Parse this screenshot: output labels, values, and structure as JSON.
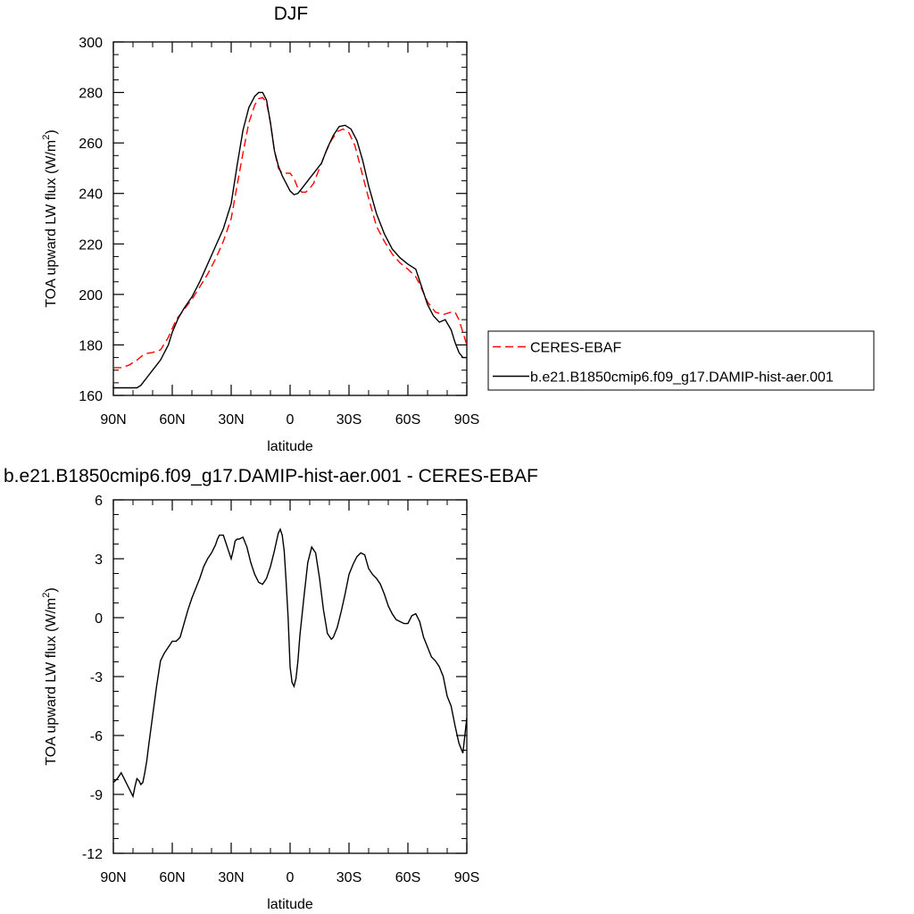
{
  "chart_data": [
    {
      "type": "line",
      "title": "DJF",
      "xlabel": "latitude",
      "ylabel": "TOA upward LW flux (W/m",
      "ylabel_sup": "2",
      "ylabel_close": ")",
      "xlim": [
        90,
        -90
      ],
      "ylim": [
        160,
        300
      ],
      "xticks": [
        90,
        60,
        30,
        0,
        -30,
        -60,
        -90
      ],
      "xtick_labels": [
        "90N",
        "60N",
        "30N",
        "0",
        "30S",
        "60S",
        "90S"
      ],
      "yticks": [
        160,
        180,
        200,
        220,
        240,
        260,
        280,
        300
      ],
      "ytick_labels": [
        "160",
        "180",
        "200",
        "220",
        "240",
        "260",
        "280",
        "300"
      ],
      "legend": "right",
      "series": [
        {
          "name": "CERES-EBAF",
          "color": "#ff0000",
          "dash": "dashed",
          "x": [
            90,
            86,
            82,
            78,
            74,
            70,
            66,
            62,
            58,
            54,
            50,
            46,
            42,
            38,
            34,
            30,
            27,
            24,
            21,
            18,
            16,
            14,
            12,
            10,
            8,
            6,
            4,
            2,
            0,
            -2,
            -4,
            -6,
            -8,
            -10,
            -12,
            -15,
            -18,
            -21,
            -24,
            -27,
            -30,
            -33,
            -36,
            -40,
            -44,
            -48,
            -52,
            -56,
            -60,
            -64,
            -66,
            -70,
            -74,
            -78,
            -82,
            -84,
            -86,
            -88,
            -90
          ],
          "y": [
            171,
            171,
            172,
            174,
            176.5,
            177,
            178,
            183,
            190,
            194,
            198,
            203,
            208,
            214,
            221,
            230,
            243,
            256,
            268,
            275,
            277.5,
            278,
            276,
            268,
            257,
            250,
            248,
            248,
            248,
            246,
            242,
            240.5,
            240.5,
            242,
            244,
            250,
            256,
            261,
            264.5,
            265.5,
            264,
            259,
            250,
            238,
            227,
            221,
            216,
            212.5,
            210,
            207,
            204,
            197,
            193,
            192,
            193,
            193,
            190,
            185,
            180
          ]
        },
        {
          "name": "b.e21.B1850cmip6.f09_g17.DAMIP-hist-aer.001",
          "color": "#000000",
          "dash": "solid",
          "x": [
            90,
            88,
            86,
            84,
            82,
            80,
            78,
            76,
            74,
            72,
            70,
            68,
            66,
            64,
            62,
            60,
            57,
            54,
            50,
            46,
            42,
            38,
            34,
            30,
            27,
            24,
            21,
            18,
            16,
            14,
            12,
            10,
            8,
            6,
            4,
            2,
            0,
            -2,
            -4,
            -6,
            -8,
            -10,
            -13,
            -16,
            -19,
            -22,
            -25,
            -28,
            -31,
            -34,
            -37,
            -40,
            -44,
            -48,
            -52,
            -56,
            -60,
            -64,
            -67,
            -70,
            -73,
            -76,
            -79,
            -82,
            -84,
            -86,
            -88,
            -90
          ],
          "y": [
            163,
            163,
            163,
            163,
            163,
            163,
            163,
            164,
            166,
            168,
            170,
            172,
            174,
            177,
            180,
            185,
            190.5,
            194.5,
            199,
            205,
            212,
            219,
            226,
            236,
            251,
            265,
            274,
            278.5,
            280,
            280,
            277,
            268,
            257,
            251,
            247,
            244,
            241,
            239.5,
            240,
            242,
            244,
            246,
            249,
            252,
            258,
            263,
            266.5,
            267,
            265.5,
            261,
            253,
            243,
            232,
            224,
            218,
            214.5,
            212,
            210,
            203,
            196,
            191.5,
            189,
            190,
            186,
            181,
            177,
            175,
            175
          ]
        }
      ]
    },
    {
      "type": "line",
      "title": "b.e21.B1850cmip6.f09_g17.DAMIP-hist-aer.001 - CERES-EBAF",
      "xlabel": "latitude",
      "ylabel": "TOA upward LW flux (W/m",
      "ylabel_sup": "2",
      "ylabel_close": ")",
      "xlim": [
        90,
        -90
      ],
      "ylim": [
        -12,
        6
      ],
      "xticks": [
        90,
        60,
        30,
        0,
        -30,
        -60,
        -90
      ],
      "xtick_labels": [
        "90N",
        "60N",
        "30N",
        "0",
        "30S",
        "60S",
        "90S"
      ],
      "yticks": [
        -12,
        -9,
        -6,
        -3,
        0,
        3,
        6
      ],
      "ytick_labels": [
        "-12",
        "-9",
        "-6",
        "-3",
        "0",
        "3",
        "6"
      ],
      "series": [
        {
          "color": "#000000",
          "dash": "solid",
          "x": [
            90,
            88,
            86,
            84,
            82,
            80,
            79,
            78,
            77,
            76,
            75,
            74,
            73,
            72,
            70,
            68,
            66,
            64,
            62,
            60,
            58,
            56,
            54,
            52,
            50,
            48,
            46,
            44,
            42,
            40,
            38,
            37,
            36,
            34,
            32,
            30,
            29,
            28,
            27,
            26,
            24,
            22,
            20,
            18,
            16,
            14,
            12,
            10,
            8,
            6,
            5,
            4,
            3,
            2,
            1,
            0,
            -1,
            -2,
            -3,
            -4,
            -5,
            -7,
            -9,
            -11,
            -13,
            -15,
            -17,
            -19,
            -21,
            -22,
            -24,
            -26,
            -28,
            -30,
            -32,
            -34,
            -36,
            -38,
            -40,
            -42,
            -44,
            -46,
            -48,
            -50,
            -52,
            -54,
            -56,
            -58,
            -60,
            -62,
            -64,
            -66,
            -68,
            -70,
            -72,
            -74,
            -76,
            -78,
            -80,
            -82,
            -84,
            -86,
            -88,
            -90
          ],
          "y": [
            -8.4,
            -8.2,
            -7.9,
            -8.3,
            -8.7,
            -9.1,
            -8.6,
            -8.2,
            -8.3,
            -8.5,
            -8.4,
            -7.9,
            -7.3,
            -6.5,
            -5.0,
            -3.5,
            -2.2,
            -1.8,
            -1.5,
            -1.2,
            -1.2,
            -1.0,
            -0.3,
            0.4,
            1.0,
            1.5,
            2.0,
            2.6,
            3.0,
            3.3,
            3.7,
            4.0,
            4.2,
            4.2,
            3.6,
            3.0,
            3.4,
            3.9,
            4.0,
            4.0,
            4.1,
            3.6,
            2.8,
            2.2,
            1.8,
            1.7,
            2.0,
            2.6,
            3.4,
            4.3,
            4.5,
            4.2,
            3.4,
            1.8,
            0.0,
            -2.5,
            -3.3,
            -3.5,
            -3.1,
            -2.2,
            -0.9,
            1.0,
            2.8,
            3.6,
            3.3,
            2.0,
            0.4,
            -0.8,
            -1.1,
            -1.0,
            -0.5,
            0.3,
            1.2,
            2.2,
            2.7,
            3.1,
            3.3,
            3.2,
            2.5,
            2.2,
            2.0,
            1.7,
            1.2,
            0.6,
            0.2,
            -0.1,
            -0.2,
            -0.3,
            -0.3,
            0.1,
            0.2,
            -0.2,
            -1.0,
            -1.5,
            -2.0,
            -2.2,
            -2.5,
            -3.0,
            -4.0,
            -4.5,
            -5.5,
            -6.4,
            -6.9,
            -5.1
          ]
        }
      ]
    }
  ]
}
